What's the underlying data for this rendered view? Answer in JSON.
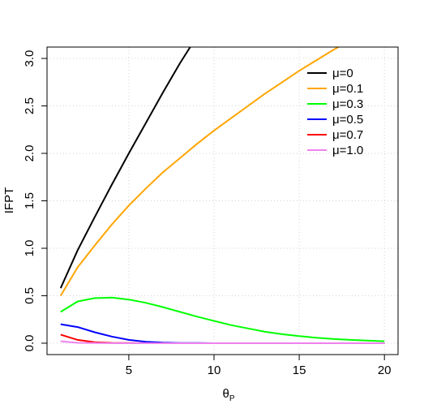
{
  "chart_data": {
    "type": "line",
    "xlabel": "θ",
    "xlabel_sub": "P",
    "ylabel": "IFPT",
    "xlim": [
      0.2,
      20.8
    ],
    "ylim": [
      -0.12,
      3.12
    ],
    "xticks": [
      5,
      10,
      15,
      20
    ],
    "yticks": [
      0.0,
      0.5,
      1.0,
      1.5,
      2.0,
      2.5,
      3.0
    ],
    "xtick_labels": [
      "5",
      "10",
      "15",
      "20"
    ],
    "ytick_labels": [
      "0.0",
      "0.5",
      "1.0",
      "1.5",
      "2.0",
      "2.5",
      "3.0"
    ],
    "grid": true,
    "legend_position": "top-right",
    "series": [
      {
        "name": "μ=0",
        "color": "#000000",
        "x": [
          1,
          2,
          3,
          4,
          5,
          6,
          7,
          8,
          8.6
        ],
        "y": [
          0.58,
          0.98,
          1.33,
          1.67,
          2.0,
          2.32,
          2.64,
          2.95,
          3.12
        ]
      },
      {
        "name": "μ=0.1",
        "color": "#FFA500",
        "x": [
          1,
          2,
          3,
          4,
          5,
          6,
          7,
          8,
          9,
          10,
          11,
          12,
          13,
          14,
          15,
          16,
          17,
          17.3
        ],
        "y": [
          0.5,
          0.8,
          1.03,
          1.25,
          1.45,
          1.63,
          1.8,
          1.95,
          2.1,
          2.24,
          2.37,
          2.5,
          2.63,
          2.75,
          2.87,
          2.98,
          3.09,
          3.12
        ]
      },
      {
        "name": "μ=0.3",
        "color": "#00FF00",
        "x": [
          1,
          2,
          3,
          4,
          5,
          6,
          7,
          8,
          9,
          10,
          11,
          12,
          13,
          14,
          15,
          16,
          17,
          18,
          19,
          20
        ],
        "y": [
          0.33,
          0.44,
          0.475,
          0.48,
          0.46,
          0.425,
          0.38,
          0.33,
          0.28,
          0.235,
          0.19,
          0.155,
          0.12,
          0.095,
          0.075,
          0.058,
          0.045,
          0.035,
          0.027,
          0.02
        ]
      },
      {
        "name": "μ=0.5",
        "color": "#0000FF",
        "x": [
          1,
          2,
          3,
          4,
          5,
          6,
          7,
          8,
          9,
          10,
          12,
          15,
          20
        ],
        "y": [
          0.2,
          0.17,
          0.115,
          0.07,
          0.035,
          0.015,
          0.006,
          0.002,
          0.001,
          0.0,
          0.0,
          0.0,
          0.0
        ]
      },
      {
        "name": "μ=0.7",
        "color": "#FF0000",
        "x": [
          1,
          2,
          3,
          4,
          5,
          6,
          8,
          10,
          15,
          20
        ],
        "y": [
          0.09,
          0.035,
          0.01,
          0.003,
          0.001,
          0.0,
          0.0,
          0.0,
          0.0,
          0.0
        ]
      },
      {
        "name": "μ=1.0",
        "color": "#EE82EE",
        "x": [
          1,
          2,
          3,
          4,
          5,
          8,
          10,
          15,
          20
        ],
        "y": [
          0.02,
          0.004,
          0.001,
          0.0,
          0.0,
          0.0,
          0.0,
          0.0,
          0.0
        ]
      }
    ]
  }
}
